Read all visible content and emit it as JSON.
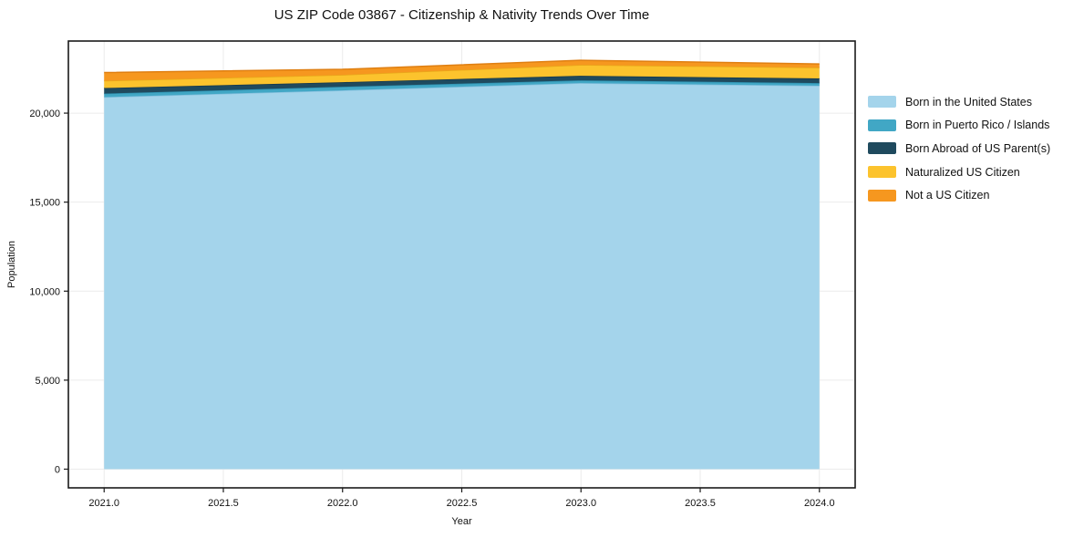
{
  "chart_data": {
    "type": "area",
    "stacked": true,
    "title": "US ZIP Code 03867 - Citizenship & Nativity Trends Over Time",
    "xlabel": "Year",
    "ylabel": "Population",
    "x": [
      2021,
      2022,
      2023,
      2024
    ],
    "series": [
      {
        "name": "Born in the United States",
        "values": [
          20900,
          21280,
          21690,
          21540
        ],
        "color": "#a4d4eb",
        "edge_color": "#86c0de"
      },
      {
        "name": "Born in Puerto Rico / Islands",
        "values": [
          200,
          200,
          150,
          150
        ],
        "color": "#41a7c5",
        "edge_color": "#2e8fae"
      },
      {
        "name": "Born Abroad of US Parent(s)",
        "values": [
          310,
          260,
          260,
          260
        ],
        "color": "#1f4a5e",
        "edge_color": "#16374a"
      },
      {
        "name": "Naturalized US Citizen",
        "values": [
          410,
          410,
          610,
          610
        ],
        "color": "#fcc32d",
        "edge_color": "#e8a81a"
      },
      {
        "name": "Not a US Citizen",
        "values": [
          460,
          310,
          260,
          200
        ],
        "color": "#f6971f",
        "edge_color": "#df7f12"
      }
    ],
    "xlim": [
      2020.85,
      2024.15
    ],
    "ylim": [
      -1050,
      24050
    ],
    "x_tick_values": [
      2021,
      2021.5,
      2022,
      2022.5,
      2023,
      2023.5,
      2024
    ],
    "x_tick_labels": [
      "2021.0",
      "2021.5",
      "2022.0",
      "2022.5",
      "2023.0",
      "2023.5",
      "2024.0"
    ],
    "y_tick_values": [
      0,
      5000,
      10000,
      15000,
      20000
    ],
    "y_tick_labels": [
      "0",
      "5,000",
      "10,000",
      "15,000",
      "20,000"
    ],
    "grid": true,
    "legend_position": "right",
    "axis_color": "#1a1a1a",
    "grid_color": "#ebebeb"
  }
}
